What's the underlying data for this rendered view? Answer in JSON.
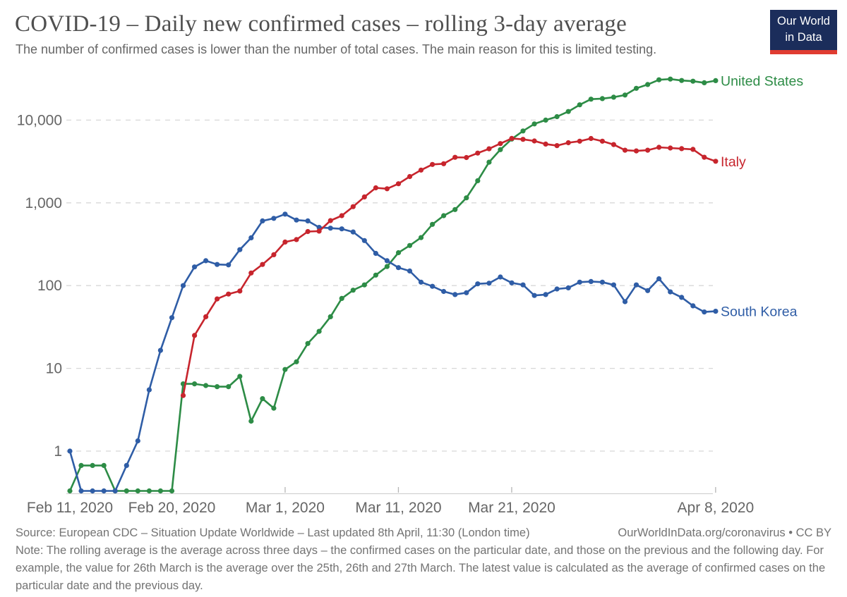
{
  "header": {
    "title": "COVID-19 – Daily new confirmed cases – rolling 3-day average",
    "subtitle": "The number of confirmed cases is lower than the number of total cases. The main reason for this is limited testing.",
    "logo": {
      "line1": "Our World",
      "line2": "in Data",
      "bg_color": "#1b2d5b",
      "accent_color": "#e03c31"
    }
  },
  "chart_data": {
    "type": "line",
    "title": "COVID-19 – Daily new confirmed cases – rolling 3-day average",
    "y_scale": "log",
    "grid": true,
    "legend_position": "right-end-labels",
    "yticks": [
      1,
      10,
      100,
      1000,
      10000
    ],
    "ytick_labels": [
      "1",
      "10",
      "100",
      "1,000",
      "10,000"
    ],
    "x_start_date": "Feb 11, 2020",
    "x_end_date": "Apr 8, 2020",
    "x_unit": "days since Feb 11, 2020",
    "xticks": [
      {
        "label": "Feb 11, 2020",
        "day": 0,
        "tick": false
      },
      {
        "label": "Feb 20, 2020",
        "day": 9,
        "tick": false
      },
      {
        "label": "Mar 1, 2020",
        "day": 19,
        "tick": true
      },
      {
        "label": "Mar 11, 2020",
        "day": 29,
        "tick": true
      },
      {
        "label": "Mar 21, 2020",
        "day": 39,
        "tick": true
      },
      {
        "label": "Apr 8, 2020",
        "day": 57,
        "tick": true
      }
    ],
    "series": [
      {
        "name": "United States",
        "color": "#2d8c46",
        "start_day": 0,
        "values": [
          0.33,
          0.67,
          0.67,
          0.67,
          0.33,
          0.33,
          0.33,
          0.33,
          0.33,
          0.33,
          6.5,
          6.5,
          6.2,
          6.0,
          6.0,
          8.0,
          2.3,
          4.3,
          3.3,
          9.7,
          12,
          20,
          28,
          42,
          70,
          88,
          102,
          134,
          170,
          250,
          305,
          380,
          550,
          700,
          830,
          1150,
          1850,
          3100,
          4400,
          5900,
          7400,
          9000,
          10000,
          11000,
          12700,
          15300,
          17900,
          18200,
          18900,
          20100,
          24200,
          26900,
          30700,
          31300,
          30100,
          29500,
          28300,
          30000
        ]
      },
      {
        "name": "South Korea",
        "color": "#2f5da6",
        "start_day": 0,
        "values": [
          1,
          0.33,
          0.33,
          0.33,
          0.33,
          0.67,
          1.33,
          5.5,
          16.5,
          41,
          100,
          168,
          200,
          180,
          178,
          272,
          378,
          605,
          650,
          730,
          620,
          605,
          505,
          495,
          485,
          445,
          350,
          245,
          200,
          165,
          150,
          110,
          98,
          85,
          78,
          82,
          105,
          107,
          127,
          108,
          102,
          76,
          78,
          91,
          94,
          110,
          112,
          110,
          102,
          64,
          102,
          87,
          121,
          84,
          72,
          57,
          48,
          49
        ]
      },
      {
        "name": "Italy",
        "color": "#c7252d",
        "start_day": 10,
        "values": [
          4.7,
          25,
          42,
          69,
          79,
          86,
          142,
          180,
          236,
          336,
          360,
          450,
          455,
          610,
          700,
          900,
          1180,
          1520,
          1480,
          1700,
          2080,
          2490,
          2910,
          2970,
          3550,
          3530,
          3990,
          4500,
          5200,
          6000,
          5850,
          5600,
          5130,
          4920,
          5330,
          5560,
          5990,
          5560,
          5060,
          4330,
          4240,
          4330,
          4690,
          4600,
          4520,
          4430,
          3560,
          3180
        ]
      }
    ]
  },
  "footer": {
    "source": "Source: European CDC – Situation Update Worldwide – Last updated 8th April, 11:30 (London time)",
    "credit": "OurWorldInData.org/coronavirus • CC BY",
    "note": "Note: The rolling average is the average across three days – the confirmed cases on the particular date, and those on the previous and the following day. For example, the value for 26th March is the average over the 25th, 26th and 27th March. The latest value is calculated as the average of confirmed cases on the particular date and the previous day."
  }
}
